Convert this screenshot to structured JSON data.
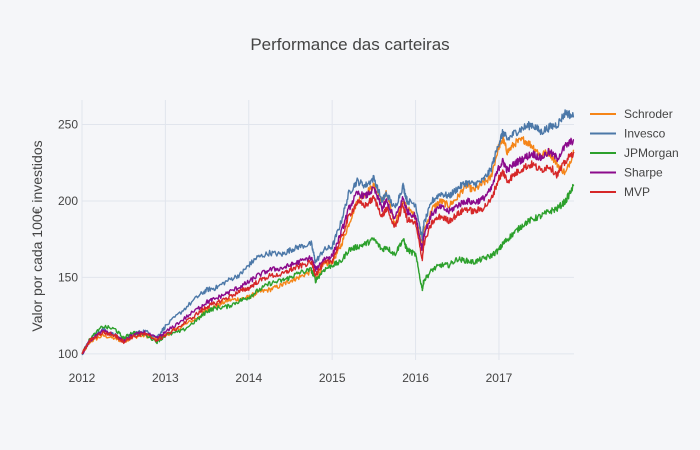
{
  "chart_data": {
    "type": "line",
    "title": "Performance das carteiras",
    "xlabel": "",
    "ylabel": "Valor por cada 100€ investidos",
    "xlim": [
      2012.0,
      2017.9
    ],
    "ylim": [
      96,
      266
    ],
    "x_ticks": [
      2012,
      2013,
      2014,
      2015,
      2016,
      2017
    ],
    "x_tick_labels": [
      "2012",
      "2013",
      "2014",
      "2015",
      "2016",
      "2017"
    ],
    "y_ticks": [
      100,
      150,
      200,
      250
    ],
    "y_tick_labels": [
      "100",
      "150",
      "200",
      "250"
    ],
    "grid": true,
    "legend": "top-right",
    "series": [
      {
        "name": "Schroder",
        "color": "#f58518",
        "x": [
          2012.0,
          2012.1,
          2012.25,
          2012.4,
          2012.5,
          2012.6,
          2012.75,
          2012.9,
          2013.0,
          2013.2,
          2013.4,
          2013.5,
          2013.6,
          2013.75,
          2013.9,
          2014.0,
          2014.1,
          2014.25,
          2014.4,
          2014.5,
          2014.6,
          2014.75,
          2014.8,
          2014.9,
          2015.0,
          2015.1,
          2015.2,
          2015.3,
          2015.4,
          2015.5,
          2015.6,
          2015.65,
          2015.75,
          2015.85,
          2015.9,
          2016.0,
          2016.08,
          2016.1,
          2016.2,
          2016.3,
          2016.4,
          2016.5,
          2016.6,
          2016.7,
          2016.8,
          2016.9,
          2017.0,
          2017.05,
          2017.1,
          2017.2,
          2017.3,
          2017.4,
          2017.5,
          2017.6,
          2017.7,
          2017.8,
          2017.9
        ],
        "values": [
          100,
          108,
          112,
          110,
          108,
          111,
          112,
          110,
          112,
          118,
          124,
          129,
          131,
          135,
          136,
          137,
          140,
          142,
          145,
          148,
          150,
          154,
          150,
          158,
          160,
          170,
          185,
          200,
          205,
          210,
          200,
          205,
          185,
          200,
          195,
          190,
          170,
          180,
          195,
          200,
          197,
          202,
          210,
          207,
          211,
          215,
          236,
          240,
          232,
          238,
          240,
          236,
          230,
          232,
          224,
          218,
          233
        ]
      },
      {
        "name": "Invesco",
        "color": "#4c78a8",
        "x": [
          2012.0,
          2012.1,
          2012.25,
          2012.4,
          2012.5,
          2012.6,
          2012.75,
          2012.9,
          2013.0,
          2013.2,
          2013.4,
          2013.5,
          2013.6,
          2013.75,
          2013.9,
          2014.0,
          2014.1,
          2014.25,
          2014.4,
          2014.5,
          2014.6,
          2014.75,
          2014.8,
          2014.9,
          2015.0,
          2015.1,
          2015.2,
          2015.3,
          2015.4,
          2015.5,
          2015.6,
          2015.65,
          2015.75,
          2015.85,
          2015.9,
          2016.0,
          2016.08,
          2016.1,
          2016.2,
          2016.3,
          2016.4,
          2016.5,
          2016.6,
          2016.7,
          2016.8,
          2016.9,
          2017.0,
          2017.05,
          2017.1,
          2017.2,
          2017.3,
          2017.4,
          2017.5,
          2017.6,
          2017.7,
          2017.8,
          2017.9
        ],
        "values": [
          100,
          110,
          116,
          112,
          109,
          113,
          115,
          111,
          118,
          128,
          138,
          142,
          143,
          148,
          152,
          158,
          163,
          166,
          165,
          168,
          170,
          172,
          160,
          168,
          170,
          185,
          205,
          213,
          210,
          215,
          200,
          205,
          195,
          210,
          200,
          198,
          175,
          185,
          200,
          205,
          203,
          208,
          212,
          211,
          213,
          220,
          238,
          245,
          240,
          245,
          248,
          250,
          245,
          248,
          250,
          258,
          255
        ]
      },
      {
        "name": "JPMorgan",
        "color": "#2ca02c",
        "x": [
          2012.0,
          2012.1,
          2012.25,
          2012.4,
          2012.5,
          2012.6,
          2012.75,
          2012.9,
          2013.0,
          2013.2,
          2013.4,
          2013.5,
          2013.6,
          2013.75,
          2013.9,
          2014.0,
          2014.1,
          2014.25,
          2014.4,
          2014.5,
          2014.6,
          2014.75,
          2014.8,
          2014.9,
          2015.0,
          2015.1,
          2015.2,
          2015.3,
          2015.4,
          2015.5,
          2015.6,
          2015.65,
          2015.75,
          2015.85,
          2015.9,
          2016.0,
          2016.08,
          2016.1,
          2016.2,
          2016.3,
          2016.4,
          2016.5,
          2016.6,
          2016.7,
          2016.8,
          2016.9,
          2017.0,
          2017.05,
          2017.1,
          2017.2,
          2017.3,
          2017.4,
          2017.5,
          2017.6,
          2017.7,
          2017.8,
          2017.9
        ],
        "values": [
          100,
          110,
          118,
          116,
          110,
          114,
          113,
          108,
          112,
          115,
          123,
          128,
          130,
          131,
          135,
          137,
          141,
          146,
          148,
          150,
          153,
          155,
          148,
          155,
          158,
          160,
          168,
          170,
          172,
          175,
          168,
          170,
          165,
          175,
          168,
          165,
          142,
          148,
          155,
          158,
          158,
          162,
          161,
          160,
          162,
          164,
          168,
          172,
          175,
          180,
          185,
          188,
          190,
          193,
          195,
          200,
          210
        ]
      },
      {
        "name": "Sharpe",
        "color": "#8b0a8c",
        "x": [
          2012.0,
          2012.1,
          2012.25,
          2012.4,
          2012.5,
          2012.6,
          2012.75,
          2012.9,
          2013.0,
          2013.2,
          2013.4,
          2013.5,
          2013.6,
          2013.75,
          2013.9,
          2014.0,
          2014.1,
          2014.25,
          2014.4,
          2014.5,
          2014.6,
          2014.75,
          2014.8,
          2014.9,
          2015.0,
          2015.1,
          2015.2,
          2015.3,
          2015.4,
          2015.5,
          2015.6,
          2015.65,
          2015.75,
          2015.85,
          2015.9,
          2016.0,
          2016.08,
          2016.1,
          2016.2,
          2016.3,
          2016.4,
          2016.5,
          2016.6,
          2016.7,
          2016.8,
          2016.9,
          2017.0,
          2017.05,
          2017.1,
          2017.2,
          2017.3,
          2017.4,
          2017.5,
          2017.6,
          2017.7,
          2017.8,
          2017.9
        ],
        "values": [
          100,
          109,
          115,
          112,
          108,
          112,
          114,
          110,
          114,
          122,
          130,
          134,
          136,
          140,
          144,
          147,
          151,
          155,
          156,
          158,
          160,
          163,
          155,
          162,
          164,
          178,
          195,
          205,
          203,
          208,
          195,
          200,
          188,
          202,
          193,
          190,
          168,
          178,
          192,
          196,
          193,
          197,
          200,
          199,
          201,
          207,
          222,
          226,
          220,
          225,
          228,
          231,
          228,
          232,
          228,
          236,
          240
        ]
      },
      {
        "name": "MVP",
        "color": "#d62728",
        "x": [
          2012.0,
          2012.1,
          2012.25,
          2012.4,
          2012.5,
          2012.6,
          2012.75,
          2012.9,
          2013.0,
          2013.2,
          2013.4,
          2013.5,
          2013.6,
          2013.75,
          2013.9,
          2014.0,
          2014.1,
          2014.25,
          2014.4,
          2014.5,
          2014.6,
          2014.75,
          2014.8,
          2014.9,
          2015.0,
          2015.1,
          2015.2,
          2015.3,
          2015.4,
          2015.5,
          2015.6,
          2015.65,
          2015.75,
          2015.85,
          2015.9,
          2016.0,
          2016.08,
          2016.1,
          2016.2,
          2016.3,
          2016.4,
          2016.5,
          2016.6,
          2016.7,
          2016.8,
          2016.9,
          2017.0,
          2017.05,
          2017.1,
          2017.2,
          2017.3,
          2017.4,
          2017.5,
          2017.6,
          2017.7,
          2017.8,
          2017.9
        ],
        "values": [
          100,
          109,
          114,
          112,
          108,
          111,
          113,
          109,
          112,
          119,
          127,
          131,
          133,
          137,
          141,
          143,
          147,
          151,
          152,
          155,
          157,
          160,
          152,
          159,
          161,
          174,
          190,
          199,
          197,
          202,
          190,
          195,
          183,
          197,
          188,
          185,
          162,
          172,
          186,
          190,
          187,
          191,
          195,
          193,
          195,
          200,
          215,
          219,
          213,
          218,
          222,
          224,
          220,
          223,
          217,
          226,
          232
        ]
      }
    ]
  }
}
